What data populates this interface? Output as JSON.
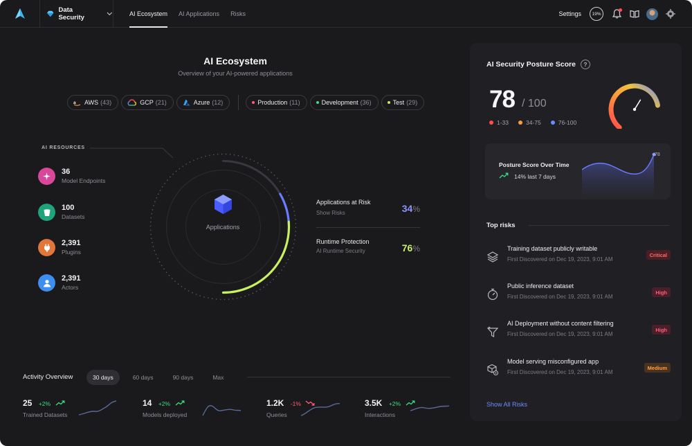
{
  "nav": {
    "workspace": "Data Security",
    "tabs": [
      {
        "label": "AI Ecosystem",
        "active": true
      },
      {
        "label": "AI Applications",
        "active": false
      },
      {
        "label": "Risks",
        "active": false
      }
    ],
    "settings": "Settings",
    "score_pill": "19%"
  },
  "hero": {
    "title": "AI Ecosystem",
    "subtitle": "Overview of your AI-powered applications"
  },
  "chips": {
    "clouds": [
      {
        "label": "AWS",
        "count": "(43)",
        "icon": "aws-icon"
      },
      {
        "label": "GCP",
        "count": "(21)",
        "icon": "gcp-icon"
      },
      {
        "label": "Azure",
        "count": "(12)",
        "icon": "azure-icon"
      }
    ],
    "envs": [
      {
        "label": "Production",
        "count": "(11)",
        "color": "#ff5c7a"
      },
      {
        "label": "Development",
        "count": "(36)",
        "color": "#3ddc84"
      },
      {
        "label": "Test",
        "count": "(29)",
        "color": "#c8e86a"
      }
    ]
  },
  "resources": {
    "label": "AI RESOURCES",
    "items": [
      {
        "value": "36",
        "caption": "Model Endpoints",
        "color": "#d9479b",
        "icon": "sparkle-icon"
      },
      {
        "value": "100",
        "caption": "Datasets",
        "color": "#1fa37a",
        "icon": "bucket-icon"
      },
      {
        "value": "2,391",
        "caption": "Plugins",
        "color": "#e0763a",
        "icon": "plug-icon"
      },
      {
        "value": "2,391",
        "caption": "Actors",
        "color": "#3e8ef0",
        "icon": "user-icon"
      }
    ]
  },
  "ring": {
    "label": "Applications",
    "risk_fraction": 0.34,
    "protection_fraction": 0.76
  },
  "metrics": [
    {
      "title": "Applications at Risk",
      "sub": "Show Risks",
      "value": "34",
      "unit": "%",
      "color": "#8a94ff"
    },
    {
      "title": "Runtime Protection",
      "sub": "AI Runtime Security",
      "value": "76",
      "unit": "%",
      "color": "#c8f060"
    }
  ],
  "activity": {
    "title": "Activity Overview",
    "tabs": [
      "30 days",
      "60 days",
      "90 days",
      "Max"
    ],
    "active_tab": "30 days",
    "stats": [
      {
        "value": "25",
        "delta": "+2%",
        "direction": "up",
        "label": "Trained Datasets"
      },
      {
        "value": "14",
        "delta": "+2%",
        "direction": "up",
        "label": "Models deployed"
      },
      {
        "value": "1.2K",
        "delta": "-1%",
        "direction": "down",
        "label": "Queries"
      },
      {
        "value": "3.5K",
        "delta": "+2%",
        "direction": "up",
        "label": "Interactions"
      }
    ],
    "up_color": "#3ddc84",
    "down_color": "#ff5c7a"
  },
  "posture": {
    "title": "AI Security Posture Score",
    "help": "?",
    "score": "78",
    "max": "/ 100",
    "score_fraction": 0.78,
    "legend": [
      {
        "label": "1-33",
        "color": "#ff4c4c"
      },
      {
        "label": "34-75",
        "color": "#ff9a3c"
      },
      {
        "label": "76-100",
        "color": "#6a8cff"
      }
    ],
    "over_time": {
      "title": "Posture Score Over Time",
      "change": "14% last 7 days",
      "end_label": "78"
    }
  },
  "risks": {
    "title": "Top risks",
    "items": [
      {
        "title": "Training dataset publicly writable",
        "sub": "First Discovered on Dec 19, 2023, 9:01 AM",
        "severity": "Critical",
        "level": "crit",
        "icon": "layers-icon"
      },
      {
        "title": "Public inference dataset",
        "sub": "First Discovered on Dec 19, 2023, 9:01 AM",
        "severity": "High",
        "level": "high",
        "icon": "timer-icon"
      },
      {
        "title": "AI Deployment without content filtering",
        "sub": "First Discovered on Dec 19, 2023, 9:01 AM",
        "severity": "High",
        "level": "high",
        "icon": "filter-icon"
      },
      {
        "title": "Model serving misconfigured app",
        "sub": "First Discovered on Dec 19, 2023, 9:01 AM",
        "severity": "Medium",
        "level": "med",
        "icon": "box-gear-icon"
      }
    ],
    "show_all": "Show All Risks"
  }
}
